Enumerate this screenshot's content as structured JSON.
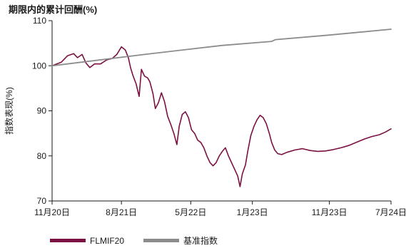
{
  "chart_data": {
    "type": "line",
    "title": "期限内的累计回酬(%)",
    "ylabel": "指数表现(%)",
    "xlabel": "",
    "ylim": [
      70,
      110
    ],
    "yticks": [
      70,
      80,
      90,
      100,
      110
    ],
    "x_range": [
      0,
      44
    ],
    "x_unit": "months since 11月20日",
    "xticks": [
      {
        "label": "11月20日",
        "pos": 0
      },
      {
        "label": "8月21日",
        "pos": 9
      },
      {
        "label": "5月22日",
        "pos": 18
      },
      {
        "label": "1月23日",
        "pos": 26
      },
      {
        "label": "11月23日",
        "pos": 36
      },
      {
        "label": "7月24日",
        "pos": 44
      }
    ],
    "grid": false,
    "legend_position": "bottom-left",
    "series": [
      {
        "name": "FLMIF20",
        "color": "#7a1142",
        "points": [
          [
            0,
            100
          ],
          [
            1.2,
            100.8
          ],
          [
            2.0,
            102.2
          ],
          [
            2.8,
            102.7
          ],
          [
            3.3,
            101.8
          ],
          [
            3.9,
            102.5
          ],
          [
            4.4,
            100.6
          ],
          [
            4.9,
            99.6
          ],
          [
            5.5,
            100.4
          ],
          [
            6.3,
            100.4
          ],
          [
            7.1,
            101.3
          ],
          [
            7.8,
            101.6
          ],
          [
            8.4,
            102.5
          ],
          [
            9.0,
            104.2
          ],
          [
            9.5,
            103.5
          ],
          [
            9.9,
            101.8
          ],
          [
            10.2,
            99.5
          ],
          [
            10.5,
            97.8
          ],
          [
            10.9,
            96.0
          ],
          [
            11.3,
            93.2
          ],
          [
            11.6,
            99.2
          ],
          [
            12.0,
            97.7
          ],
          [
            12.4,
            97.3
          ],
          [
            12.7,
            96.4
          ],
          [
            13.1,
            93.8
          ],
          [
            13.4,
            90.5
          ],
          [
            13.8,
            91.8
          ],
          [
            14.2,
            94.0
          ],
          [
            14.6,
            92.0
          ],
          [
            15.0,
            88.8
          ],
          [
            15.4,
            87.0
          ],
          [
            15.8,
            85.0
          ],
          [
            16.2,
            82.5
          ],
          [
            16.5,
            86.5
          ],
          [
            16.9,
            89.2
          ],
          [
            17.3,
            89.8
          ],
          [
            17.7,
            88.5
          ],
          [
            18.1,
            85.8
          ],
          [
            18.5,
            85.0
          ],
          [
            18.9,
            83.5
          ],
          [
            19.3,
            83.0
          ],
          [
            19.7,
            81.8
          ],
          [
            20.1,
            80.0
          ],
          [
            20.5,
            78.5
          ],
          [
            20.9,
            77.8
          ],
          [
            21.3,
            78.5
          ],
          [
            21.7,
            80.0
          ],
          [
            22.1,
            81.0
          ],
          [
            22.5,
            81.8
          ],
          [
            22.9,
            80.0
          ],
          [
            23.3,
            78.5
          ],
          [
            23.7,
            77.0
          ],
          [
            24.1,
            75.5
          ],
          [
            24.4,
            73.2
          ],
          [
            24.7,
            76.0
          ],
          [
            25.1,
            78.0
          ],
          [
            25.4,
            81.0
          ],
          [
            25.8,
            84.5
          ],
          [
            26.2,
            86.5
          ],
          [
            26.6,
            88.0
          ],
          [
            27.0,
            89.0
          ],
          [
            27.4,
            88.5
          ],
          [
            27.8,
            87.2
          ],
          [
            28.2,
            85.0
          ],
          [
            28.5,
            83.0
          ],
          [
            28.9,
            81.3
          ],
          [
            29.3,
            80.5
          ],
          [
            29.8,
            80.3
          ],
          [
            30.5,
            80.8
          ],
          [
            31.5,
            81.3
          ],
          [
            32.5,
            81.6
          ],
          [
            33.5,
            81.2
          ],
          [
            34.5,
            81.0
          ],
          [
            35.5,
            81.1
          ],
          [
            36.5,
            81.4
          ],
          [
            37.5,
            81.8
          ],
          [
            38.5,
            82.3
          ],
          [
            39.5,
            83.0
          ],
          [
            40.5,
            83.7
          ],
          [
            41.5,
            84.3
          ],
          [
            42.5,
            84.7
          ],
          [
            43.3,
            85.3
          ],
          [
            44.0,
            86.0
          ]
        ]
      },
      {
        "name": "基准指数",
        "color": "#8c8c8c",
        "points": [
          [
            0,
            100
          ],
          [
            12,
            102.5
          ],
          [
            22,
            104.5
          ],
          [
            28.5,
            105.4
          ],
          [
            29,
            105.8
          ],
          [
            36,
            106.8
          ],
          [
            44,
            108.1
          ]
        ]
      }
    ]
  }
}
